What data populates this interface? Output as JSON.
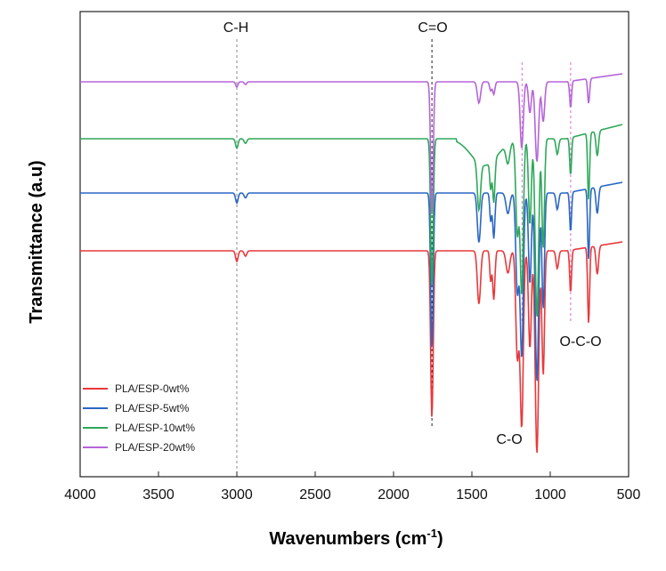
{
  "chart_data": {
    "type": "line",
    "xlabel": "Wavenumbers (cm",
    "xlabel_sup": "-1",
    "xlabel_tail": ")",
    "ylabel": "Transmittance (a.u)",
    "xlim": [
      4000,
      500
    ],
    "x_reversed": true,
    "xticks": [
      4000,
      3500,
      3000,
      2500,
      2000,
      1500,
      1000,
      500
    ],
    "yticks": [],
    "grid": false,
    "legend_position": "bottom-left",
    "annotations": [
      {
        "text": "C-H",
        "x": 3000,
        "style": "dashed-gray"
      },
      {
        "text": "C=O",
        "x": 1755,
        "style": "dashed-black"
      },
      {
        "text": "",
        "x": 1180,
        "style": "dashed-violet"
      },
      {
        "text": "",
        "x": 870,
        "style": "dashed-violet"
      },
      {
        "text": "C-O",
        "x": 1180
      },
      {
        "text": "O-C-O",
        "x": 870
      }
    ],
    "series": [
      {
        "name": "PLA/ESP-0wt%",
        "color": "#e8393b",
        "offset": 0
      },
      {
        "name": "PLA/ESP-5wt%",
        "color": "#2b67c4",
        "offset": 1
      },
      {
        "name": "PLA/ESP-10wt%",
        "color": "#2ea85a",
        "offset": 2
      },
      {
        "name": "PLA/ESP-20wt%",
        "color": "#b565d8",
        "offset": 3
      }
    ]
  }
}
